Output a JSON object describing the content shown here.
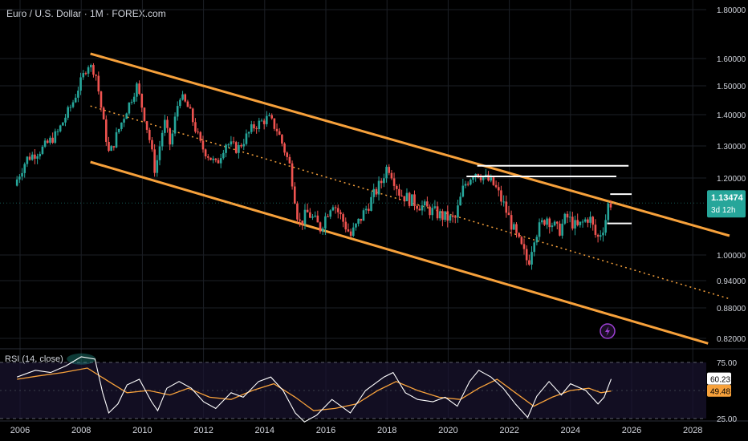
{
  "header": {
    "title": "Euro / U.S. Dollar · 1M · FOREX.com"
  },
  "colors": {
    "background": "#000000",
    "bull": "#26a69a",
    "bear": "#ef5350",
    "channel": "#f7a13b",
    "level": "#ffffff",
    "grid": "#1c1f26",
    "text": "#d1d4dc",
    "rsi_line": "#ffffff",
    "rsi_ma": "#f7a13b",
    "price_badge": "#26a69a",
    "rsi_ma_badge": "#f7a13b",
    "lightning": "#9c3fd3"
  },
  "price_badge": {
    "value": "1.13474",
    "countdown": "3d 12h"
  },
  "rsi_panel": {
    "label": "RSI (14, close)",
    "upper": "75.00",
    "lower": "25.00",
    "badge_value": "60.23",
    "ma_badge_value": "49.48"
  },
  "lightning_icon": "lightning-icon",
  "chart_data": {
    "type": "candlestick",
    "x_ticks": [
      "2006",
      "2008",
      "2010",
      "2012",
      "2014",
      "2016",
      "2018",
      "2020",
      "2022",
      "2024",
      "2026",
      "2028"
    ],
    "y_ticks": [
      "1.80000",
      "1.60000",
      "1.50000",
      "1.40000",
      "1.30000",
      "1.20000",
      "1.00000",
      "0.94000",
      "0.88000",
      "0.82000"
    ],
    "ylim": [
      0.8,
      1.8
    ],
    "xlim": [
      2005.5,
      2029.0
    ],
    "price_path": [
      [
        2005.9,
        1.18
      ],
      [
        2006.3,
        1.26
      ],
      [
        2006.8,
        1.29
      ],
      [
        2007.3,
        1.34
      ],
      [
        2007.8,
        1.44
      ],
      [
        2008.3,
        1.58
      ],
      [
        2008.55,
        1.55
      ],
      [
        2008.8,
        1.38
      ],
      [
        2009.0,
        1.27
      ],
      [
        2009.3,
        1.35
      ],
      [
        2009.9,
        1.5
      ],
      [
        2010.3,
        1.33
      ],
      [
        2010.5,
        1.22
      ],
      [
        2010.8,
        1.38
      ],
      [
        2011.0,
        1.3
      ],
      [
        2011.3,
        1.47
      ],
      [
        2011.6,
        1.42
      ],
      [
        2012.0,
        1.3
      ],
      [
        2012.5,
        1.24
      ],
      [
        2012.8,
        1.31
      ],
      [
        2013.2,
        1.29
      ],
      [
        2013.7,
        1.36
      ],
      [
        2014.2,
        1.39
      ],
      [
        2014.5,
        1.35
      ],
      [
        2014.9,
        1.24
      ],
      [
        2015.2,
        1.08
      ],
      [
        2015.5,
        1.11
      ],
      [
        2015.9,
        1.07
      ],
      [
        2016.3,
        1.14
      ],
      [
        2016.9,
        1.05
      ],
      [
        2017.4,
        1.12
      ],
      [
        2017.9,
        1.19
      ],
      [
        2018.1,
        1.24
      ],
      [
        2018.5,
        1.16
      ],
      [
        2018.9,
        1.14
      ],
      [
        2019.4,
        1.12
      ],
      [
        2019.9,
        1.1
      ],
      [
        2020.3,
        1.09
      ],
      [
        2020.6,
        1.18
      ],
      [
        2020.95,
        1.22
      ],
      [
        2021.3,
        1.2
      ],
      [
        2021.6,
        1.18
      ],
      [
        2021.9,
        1.13
      ],
      [
        2022.3,
        1.05
      ],
      [
        2022.7,
        0.98
      ],
      [
        2022.9,
        1.05
      ],
      [
        2023.3,
        1.1
      ],
      [
        2023.7,
        1.06
      ],
      [
        2023.95,
        1.1
      ],
      [
        2024.3,
        1.07
      ],
      [
        2024.7,
        1.1
      ],
      [
        2024.95,
        1.04
      ],
      [
        2025.2,
        1.08
      ],
      [
        2025.33,
        1.135
      ]
    ],
    "channel": {
      "upper": [
        [
          2008.3,
          1.62
        ],
        [
          2029.2,
          1.05
        ]
      ],
      "mid": [
        [
          2008.3,
          1.43
        ],
        [
          2029.2,
          0.9
        ]
      ],
      "lower": [
        [
          2008.3,
          1.25
        ],
        [
          2028.5,
          0.81
        ]
      ]
    },
    "levels": [
      {
        "y": 1.238,
        "x": [
          2020.95,
          2025.9
        ]
      },
      {
        "y": 1.205,
        "x": [
          2020.6,
          2025.5
        ]
      },
      {
        "y": 1.158,
        "x": [
          2025.3,
          2026.0
        ]
      },
      {
        "y": 1.082,
        "x": [
          2025.2,
          2026.0
        ]
      }
    ],
    "rsi": {
      "ylim": [
        25,
        85
      ],
      "upper": 75,
      "lower": 25,
      "line": [
        [
          2005.9,
          62
        ],
        [
          2006.5,
          68
        ],
        [
          2007.0,
          66
        ],
        [
          2007.5,
          72
        ],
        [
          2008.0,
          80
        ],
        [
          2008.45,
          78
        ],
        [
          2008.7,
          48
        ],
        [
          2008.9,
          30
        ],
        [
          2009.2,
          38
        ],
        [
          2009.5,
          55
        ],
        [
          2009.9,
          60
        ],
        [
          2010.3,
          40
        ],
        [
          2010.5,
          32
        ],
        [
          2010.8,
          52
        ],
        [
          2011.2,
          58
        ],
        [
          2011.6,
          52
        ],
        [
          2012.0,
          40
        ],
        [
          2012.4,
          34
        ],
        [
          2012.9,
          48
        ],
        [
          2013.3,
          44
        ],
        [
          2013.8,
          58
        ],
        [
          2014.2,
          62
        ],
        [
          2014.6,
          50
        ],
        [
          2015.0,
          30
        ],
        [
          2015.3,
          22
        ],
        [
          2015.7,
          28
        ],
        [
          2016.2,
          42
        ],
        [
          2016.8,
          30
        ],
        [
          2017.3,
          50
        ],
        [
          2017.9,
          62
        ],
        [
          2018.2,
          66
        ],
        [
          2018.6,
          48
        ],
        [
          2019.0,
          42
        ],
        [
          2019.5,
          40
        ],
        [
          2019.9,
          44
        ],
        [
          2020.3,
          36
        ],
        [
          2020.7,
          58
        ],
        [
          2021.0,
          68
        ],
        [
          2021.4,
          62
        ],
        [
          2021.8,
          52
        ],
        [
          2022.2,
          38
        ],
        [
          2022.6,
          26
        ],
        [
          2022.9,
          45
        ],
        [
          2023.3,
          58
        ],
        [
          2023.7,
          46
        ],
        [
          2024.0,
          56
        ],
        [
          2024.5,
          50
        ],
        [
          2024.9,
          38
        ],
        [
          2025.1,
          44
        ],
        [
          2025.33,
          60.23
        ]
      ],
      "ma": [
        [
          2005.9,
          60
        ],
        [
          2006.6,
          63
        ],
        [
          2007.4,
          66
        ],
        [
          2008.2,
          70
        ],
        [
          2008.9,
          58
        ],
        [
          2009.5,
          48
        ],
        [
          2010.2,
          50
        ],
        [
          2010.9,
          46
        ],
        [
          2011.5,
          52
        ],
        [
          2012.2,
          44
        ],
        [
          2012.9,
          42
        ],
        [
          2013.6,
          50
        ],
        [
          2014.3,
          56
        ],
        [
          2015.0,
          44
        ],
        [
          2015.6,
          32
        ],
        [
          2016.3,
          34
        ],
        [
          2017.0,
          38
        ],
        [
          2017.7,
          50
        ],
        [
          2018.3,
          58
        ],
        [
          2019.0,
          50
        ],
        [
          2019.7,
          44
        ],
        [
          2020.4,
          42
        ],
        [
          2021.0,
          52
        ],
        [
          2021.6,
          60
        ],
        [
          2022.2,
          48
        ],
        [
          2022.8,
          36
        ],
        [
          2023.4,
          44
        ],
        [
          2024.0,
          50
        ],
        [
          2024.6,
          52
        ],
        [
          2025.0,
          48
        ],
        [
          2025.33,
          49.48
        ]
      ]
    }
  }
}
